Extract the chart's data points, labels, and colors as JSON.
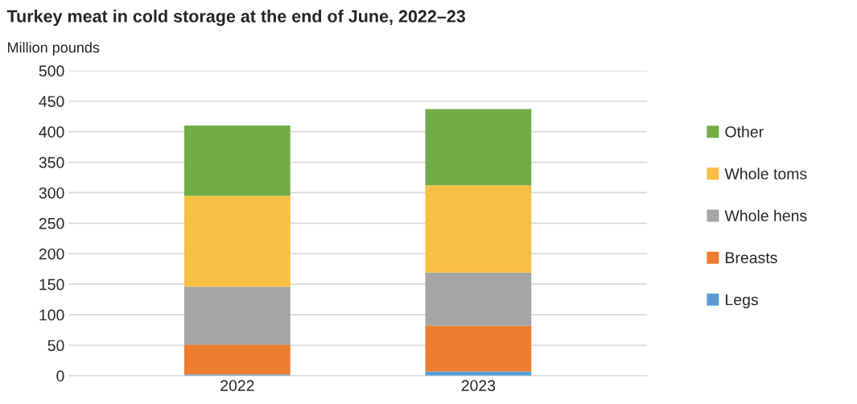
{
  "chart_data": {
    "type": "bar",
    "title": "Turkey meat in cold storage at the end of June, 2022–23",
    "ylabel": "Million pounds",
    "categories": [
      "2022",
      "2023"
    ],
    "stacked": true,
    "series": [
      {
        "name": "Legs",
        "color": "#5b9bd5",
        "values": [
          2,
          7
        ]
      },
      {
        "name": "Breasts",
        "color": "#ed7d31",
        "values": [
          49,
          75
        ]
      },
      {
        "name": "Whole hens",
        "color": "#a5a5a5",
        "values": [
          95,
          87
        ]
      },
      {
        "name": "Whole toms",
        "color": "#f8bf45",
        "values": [
          149,
          143
        ]
      },
      {
        "name": "Other",
        "color": "#70ad47",
        "values": [
          115,
          125
        ]
      }
    ],
    "ylim": [
      0,
      500
    ],
    "yticks": [
      0,
      50,
      100,
      150,
      200,
      250,
      300,
      350,
      400,
      450,
      500
    ],
    "grid": "y",
    "legend": "right"
  }
}
